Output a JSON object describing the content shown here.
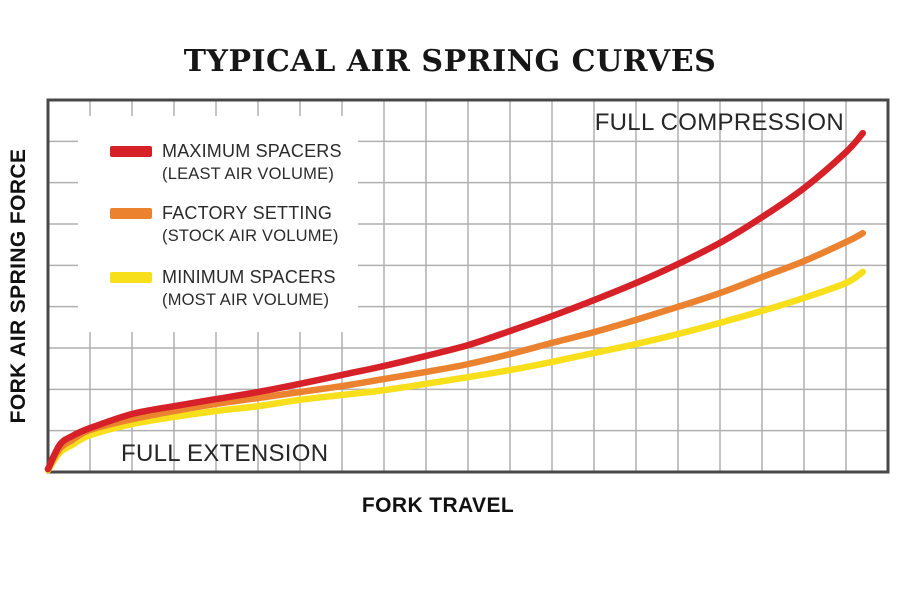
{
  "title": "TYPICAL AIR SPRING CURVES",
  "x_axis_label": "FORK TRAVEL",
  "y_axis_label": "FORK AIR SPRING FORCE",
  "annotations": {
    "full_compression": "FULL COMPRESSION",
    "full_extension": "FULL EXTENSION"
  },
  "legend": {
    "items": [
      {
        "label": "MAXIMUM SPACERS",
        "sublabel": "(LEAST AIR VOLUME)",
        "color": "#d62128"
      },
      {
        "label": "FACTORY SETTING",
        "sublabel": "(STOCK AIR VOLUME)",
        "color": "#eb8230"
      },
      {
        "label": "MINIMUM SPACERS",
        "sublabel": "(MOST AIR VOLUME)",
        "color": "#f8df1b"
      }
    ]
  },
  "colors": {
    "grid": "#b0b0b0",
    "plot_border": "#484848",
    "red_curve": "#d62128",
    "orange_curve": "#eb8230",
    "yellow_curve": "#f8df1b",
    "text": "#2b2b2b"
  },
  "chart_data": {
    "type": "line",
    "title": "TYPICAL AIR SPRING CURVES",
    "xlabel": "FORK TRAVEL",
    "ylabel": "FORK AIR SPRING FORCE",
    "x_unit": "fork travel, % of full stroke (axis has no tick labels)",
    "y_unit": "air spring force, relative units (axis has no tick labels)",
    "xlim": [
      0,
      100
    ],
    "ylim": [
      0,
      100
    ],
    "grid": true,
    "legend_position": "upper left",
    "x": [
      0,
      1.4,
      2.9,
      5,
      10,
      15,
      20,
      25,
      30,
      35,
      40,
      45,
      50,
      55,
      60,
      65,
      70,
      75,
      80,
      85,
      90,
      95,
      97
    ],
    "series": [
      {
        "name": "MAXIMUM SPACERS (LEAST AIR VOLUME)",
        "color": "#d62128",
        "values": [
          0.8,
          7.3,
          9.7,
          11.8,
          15.6,
          17.7,
          19.6,
          21.5,
          23.7,
          26.1,
          28.5,
          31.2,
          34.1,
          37.9,
          41.9,
          46.2,
          50.8,
          55.9,
          61.6,
          68.5,
          76.3,
          86.0,
          91.1
        ]
      },
      {
        "name": "FACTORY SETTING (STOCK AIR VOLUME)",
        "color": "#eb8230",
        "values": [
          0.8,
          6.3,
          8.6,
          11.3,
          14.2,
          16.4,
          18.3,
          19.9,
          21.5,
          23.1,
          25.0,
          26.9,
          29.0,
          31.7,
          34.7,
          37.6,
          40.9,
          44.4,
          48.1,
          52.4,
          56.7,
          61.8,
          64.2
        ]
      },
      {
        "name": "MINIMUM SPACERS (MOST AIR VOLUME)",
        "color": "#f8df1b",
        "values": [
          0.5,
          5.2,
          7.3,
          9.9,
          12.9,
          14.8,
          16.4,
          17.7,
          19.4,
          20.7,
          22.0,
          23.7,
          25.5,
          27.4,
          29.6,
          32.0,
          34.4,
          37.1,
          40.1,
          43.3,
          46.8,
          50.8,
          53.8
        ]
      }
    ],
    "annotations": [
      {
        "text": "FULL EXTENSION",
        "position": "bottom-left, start of travel"
      },
      {
        "text": "FULL COMPRESSION",
        "position": "top-right, end of travel"
      }
    ]
  }
}
